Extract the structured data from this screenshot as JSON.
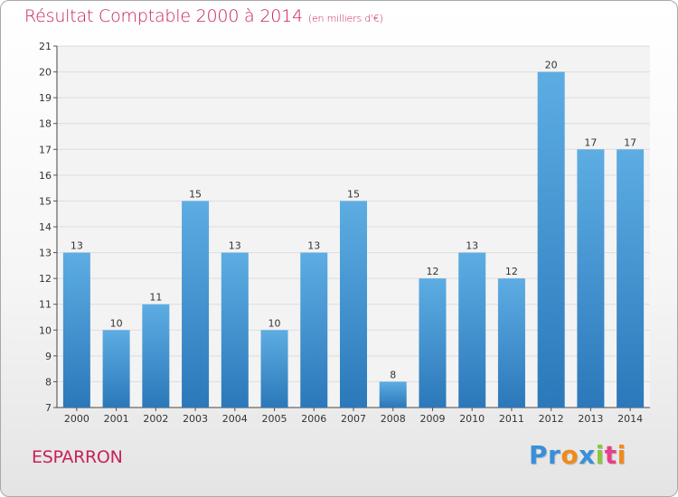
{
  "header": {
    "title": "Résultat Comptable 2000 à 2014",
    "unit": "(en milliers d'€)"
  },
  "footer": {
    "place": "ESPARRON",
    "logo": "Proxiti"
  },
  "colors": {
    "title": "#c8215a",
    "bar_top": "#5dade3",
    "bar_bottom": "#2b78ba",
    "logo_letters": [
      "#3a8fd8",
      "#3a8fd8",
      "#f08a1d",
      "#3a8fd8",
      "#8cc63f",
      "#e83e8c",
      "#f08a1d"
    ]
  },
  "chart_data": {
    "type": "bar",
    "title": "Résultat Comptable 2000 à 2014",
    "subtitle": "(en milliers d'€)",
    "categories": [
      "2000",
      "2001",
      "2002",
      "2003",
      "2004",
      "2005",
      "2006",
      "2007",
      "2008",
      "2009",
      "2010",
      "2011",
      "2012",
      "2013",
      "2014"
    ],
    "values": [
      13,
      10,
      11,
      15,
      13,
      10,
      13,
      15,
      8,
      12,
      13,
      12,
      20,
      17,
      17
    ],
    "data_labels": [
      "13",
      "10",
      "11",
      "15",
      "13",
      "10",
      "13",
      "15",
      "8",
      "12",
      "13",
      "12",
      "20",
      "17",
      "17"
    ],
    "y_ticks": [
      "7",
      "8",
      "9",
      "10",
      "11",
      "12",
      "13",
      "14",
      "15",
      "16",
      "17",
      "18",
      "19",
      "20",
      "21"
    ],
    "ylim": [
      7,
      21
    ],
    "xlabel": "",
    "ylabel": "",
    "grid": true
  }
}
